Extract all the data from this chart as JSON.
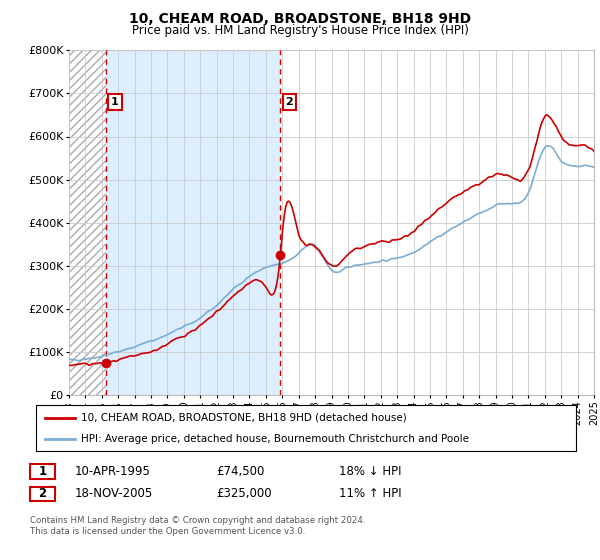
{
  "title": "10, CHEAM ROAD, BROADSTONE, BH18 9HD",
  "subtitle": "Price paid vs. HM Land Registry's House Price Index (HPI)",
  "legend_line1": "10, CHEAM ROAD, BROADSTONE, BH18 9HD (detached house)",
  "legend_line2": "HPI: Average price, detached house, Bournemouth Christchurch and Poole",
  "table_row1": [
    "1",
    "10-APR-1995",
    "£74,500",
    "18% ↓ HPI"
  ],
  "table_row2": [
    "2",
    "18-NOV-2005",
    "£325,000",
    "11% ↑ HPI"
  ],
  "footer": "Contains HM Land Registry data © Crown copyright and database right 2024.\nThis data is licensed under the Open Government Licence v3.0.",
  "hpi_color": "#7aadd4",
  "price_color": "#cc0000",
  "ylim": [
    0,
    800000
  ],
  "yticks": [
    0,
    100000,
    200000,
    300000,
    400000,
    500000,
    600000,
    700000,
    800000
  ],
  "ytick_labels": [
    "£0",
    "£100K",
    "£200K",
    "£300K",
    "£400K",
    "£500K",
    "£600K",
    "£700K",
    "£800K"
  ],
  "sale1_x": 1995.27,
  "sale1_y": 74500,
  "sale2_x": 2005.89,
  "sale2_y": 325000,
  "xmin": 1993,
  "xmax": 2025,
  "light_blue_fill": "#ddeeff",
  "hatch_color": "#cccccc"
}
